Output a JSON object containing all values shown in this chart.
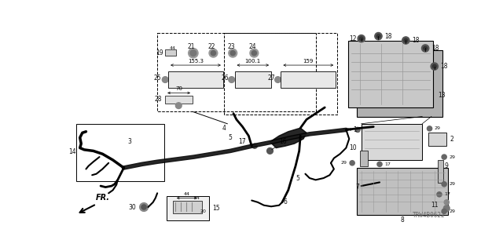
{
  "part_number": "TRW4B0622",
  "bg": "#ffffff",
  "fg": "#000000",
  "figsize": [
    6.4,
    3.2
  ],
  "dpi": 100
}
